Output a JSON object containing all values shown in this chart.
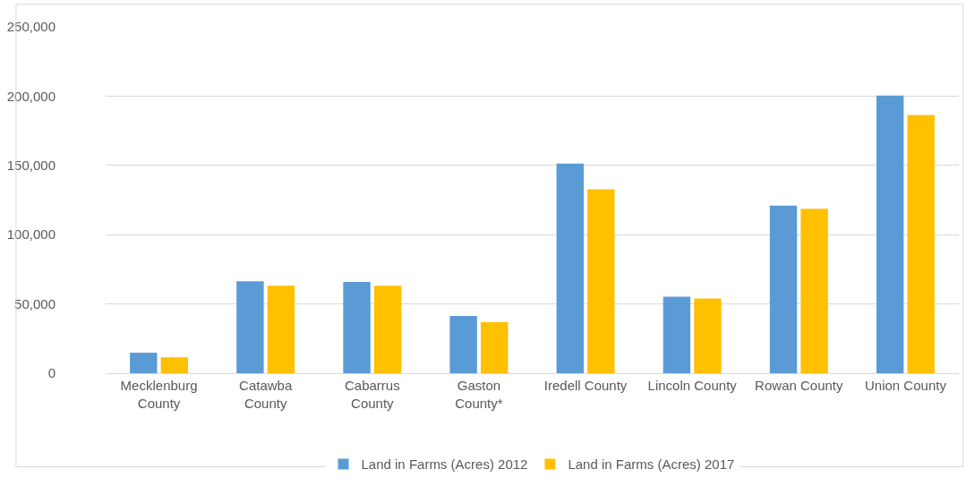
{
  "chart_data": {
    "type": "bar",
    "categories": [
      "Mecklenburg\nCounty",
      "Catawba\nCounty",
      "Cabarrus\nCounty",
      "Gaston\nCounty*",
      "Iredell County",
      "Lincoln County",
      "Rowan County",
      "Union County"
    ],
    "series": [
      {
        "name": "Land in Farms (Acres) 2012",
        "color": "#5b9bd5",
        "values": [
          14800,
          66400,
          65900,
          41400,
          151300,
          55300,
          120900,
          200400
        ]
      },
      {
        "name": "Land in Farms (Acres) 2017",
        "color": "#ffc000",
        "values": [
          11500,
          63100,
          63100,
          36900,
          132800,
          54000,
          118700,
          186300
        ]
      }
    ],
    "ylim": [
      0,
      250000
    ],
    "yticks": [
      {
        "value": 0,
        "label": "0"
      },
      {
        "value": 50000,
        "label": "50,000"
      },
      {
        "value": 100000,
        "label": "100,000"
      },
      {
        "value": 150000,
        "label": "150,000"
      },
      {
        "value": 200000,
        "label": "200,000"
      },
      {
        "value": 250000,
        "label": "250,000"
      }
    ],
    "grid": "y",
    "legend": "bottom"
  }
}
